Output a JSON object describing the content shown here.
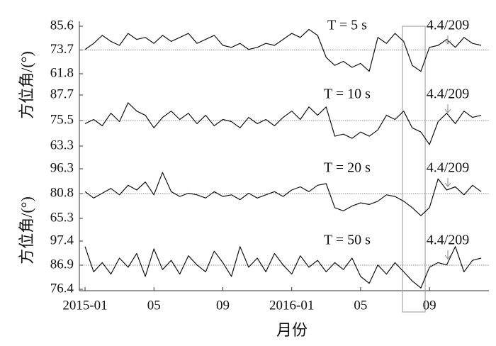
{
  "highlight_x": [
    18.43,
    19.75
  ],
  "chart_data": [
    {
      "type": "line",
      "title": "T = 5 s",
      "annotation": "4.4/209",
      "ylabel": "方位角/(°)",
      "x": [
        0,
        0.5,
        1,
        1.5,
        2,
        2.5,
        3,
        3.5,
        4,
        4.5,
        5,
        5.5,
        6,
        6.5,
        7,
        7.5,
        8,
        8.5,
        9,
        9.5,
        10,
        10.5,
        11,
        11.5,
        12,
        12.5,
        13,
        13.5,
        14,
        14.5,
        15,
        15.5,
        16,
        16.5,
        17,
        17.5,
        18,
        18.5,
        19,
        19.5,
        20,
        20.5,
        21,
        21.5,
        22,
        22.5,
        23
      ],
      "values": [
        74,
        77,
        81,
        78,
        76,
        82,
        79,
        80,
        77,
        81,
        78,
        80,
        82,
        77,
        79,
        81,
        76,
        75,
        77,
        74,
        75,
        77,
        76,
        79,
        82,
        80,
        84,
        81,
        70,
        66,
        68,
        65,
        67,
        63,
        80,
        77,
        82,
        78,
        66,
        63,
        75,
        76,
        79,
        75,
        80,
        77,
        76
      ],
      "color": "#111111",
      "hline": 73.7,
      "xlim": [
        -0.33,
        23.45
      ],
      "ylim": [
        61.8,
        85.6
      ],
      "yticks": [
        85.6,
        73.7,
        61.8
      ]
    },
    {
      "type": "line",
      "title": "T = 10 s",
      "annotation": "4.4/209",
      "x": [
        0,
        0.5,
        1,
        1.5,
        2,
        2.5,
        3,
        3.5,
        4,
        4.5,
        5,
        5.5,
        6,
        6.5,
        7,
        7.5,
        8,
        8.5,
        9,
        9.5,
        10,
        10.5,
        11,
        11.5,
        12,
        12.5,
        13,
        13.5,
        14,
        14.5,
        15,
        15.5,
        16,
        16.5,
        17,
        17.5,
        18,
        18.5,
        19,
        19.5,
        20,
        20.5,
        21,
        21.5,
        22,
        22.5,
        23
      ],
      "values": [
        74,
        76,
        73,
        79,
        75,
        84,
        80,
        78,
        72,
        77,
        80,
        76,
        79,
        74,
        78,
        73,
        76,
        75,
        72,
        77,
        74,
        76,
        73,
        77,
        80,
        76,
        82,
        78,
        82,
        68,
        69,
        67,
        70,
        68,
        71,
        78,
        76,
        80,
        72,
        70,
        64,
        75,
        79,
        74,
        80,
        77,
        78
      ],
      "color": "#111111",
      "hline": 75.5,
      "xlim": [
        -0.33,
        23.45
      ],
      "ylim": [
        63.3,
        87.7
      ],
      "yticks": [
        87.7,
        75.5,
        63.3
      ]
    },
    {
      "type": "line",
      "title": "T = 20 s",
      "annotation": "4.4/209",
      "ylabel": "方位角/(°)",
      "x": [
        0,
        0.5,
        1,
        1.5,
        2,
        2.5,
        3,
        3.5,
        4,
        4.5,
        5,
        5.5,
        6,
        6.5,
        7,
        7.5,
        8,
        8.5,
        9,
        9.5,
        10,
        10.5,
        11,
        11.5,
        12,
        12.5,
        13,
        13.5,
        14,
        14.5,
        15,
        15.5,
        16,
        16.5,
        17,
        17.5,
        18,
        18.5,
        19,
        19.5,
        20,
        20.5,
        21,
        21.5,
        22,
        22.5,
        23
      ],
      "values": [
        82,
        78,
        81,
        84,
        80,
        86,
        83,
        88,
        80,
        94,
        82,
        79,
        81,
        80,
        78,
        82,
        79,
        80,
        77,
        81,
        78,
        80,
        82,
        79,
        83,
        85,
        82,
        86,
        87,
        72,
        70,
        73,
        75,
        74,
        76,
        80,
        79,
        76,
        72,
        67,
        72,
        90,
        83,
        85,
        80,
        86,
        82
      ],
      "color": "#111111",
      "hline": 80.8,
      "xlim": [
        -0.33,
        23.45
      ],
      "ylim": [
        65.3,
        96.3
      ],
      "yticks": [
        96.3,
        80.8,
        65.3
      ]
    },
    {
      "type": "line",
      "title": "T = 50 s",
      "annotation": "4.4/209",
      "xlabel": "月份",
      "x": [
        0,
        0.5,
        1,
        1.5,
        2,
        2.5,
        3,
        3.5,
        4,
        4.5,
        5,
        5.5,
        6,
        6.5,
        7,
        7.5,
        8,
        8.5,
        9,
        9.5,
        10,
        10.5,
        11,
        11.5,
        12,
        12.5,
        13,
        13.5,
        14,
        14.5,
        15,
        15.5,
        16,
        16.5,
        17,
        17.5,
        18,
        18.5,
        19,
        19.5,
        20,
        20.5,
        21,
        21.5,
        22,
        22.5,
        23
      ],
      "values": [
        95,
        84,
        88,
        83,
        90,
        86,
        92,
        82,
        94,
        85,
        89,
        83,
        91,
        87,
        84,
        93,
        88,
        82,
        95,
        86,
        90,
        84,
        92,
        87,
        83,
        91,
        86,
        89,
        84,
        88,
        85,
        90,
        82,
        79,
        87,
        83,
        88,
        84,
        80,
        77,
        86,
        88,
        87,
        95,
        84,
        89,
        90
      ],
      "color": "#111111",
      "hline": 86.9,
      "xlim": [
        -0.33,
        23.45
      ],
      "ylim": [
        76.4,
        97.4
      ],
      "yticks": [
        97.4,
        86.9,
        76.4
      ],
      "xticks": [
        {
          "value": 0,
          "label": "2015-01"
        },
        {
          "value": 4,
          "label": "05"
        },
        {
          "value": 8,
          "label": "09"
        },
        {
          "value": 12,
          "label": "2016-01"
        },
        {
          "value": 16,
          "label": "05"
        },
        {
          "value": 20,
          "label": "09"
        }
      ]
    }
  ]
}
